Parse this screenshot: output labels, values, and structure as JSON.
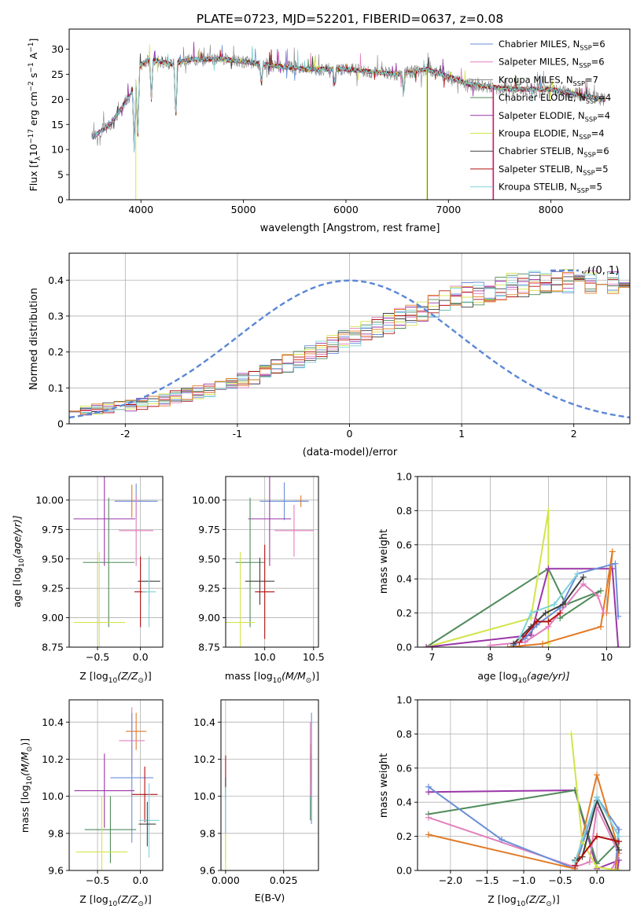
{
  "figure_title": "PLATE=0723, MJD=52201, FIBERID=0637, z=0.08",
  "legend_entries": [
    {
      "label": "Chabrier MILES, N",
      "sub": "SSP",
      "eq": "=6",
      "color": "#6a8fd8"
    },
    {
      "label": "Salpeter MILES, N",
      "sub": "SSP",
      "eq": "=6",
      "color": "#e27fbd"
    },
    {
      "label": "Kroupa MILES, N",
      "sub": "SSP",
      "eq": "=7",
      "color": "#808080"
    },
    {
      "label": "Chabrier ELODIE, N",
      "sub": "SSP",
      "eq": "=4",
      "color": "#4f8a5a"
    },
    {
      "label": "Salpeter ELODIE, N",
      "sub": "SSP",
      "eq": "=4",
      "color": "#9b36a8"
    },
    {
      "label": "Kroupa ELODIE, N",
      "sub": "SSP",
      "eq": "=4",
      "color": "#d2e44a"
    },
    {
      "label": "Chabrier STELIB, N",
      "sub": "SSP",
      "eq": "=6",
      "color": "#404040"
    },
    {
      "label": "Salpeter STELIB, N",
      "sub": "SSP",
      "eq": "=5",
      "color": "#b01010"
    },
    {
      "label": "Kroupa STELIB, N",
      "sub": "SSP",
      "eq": "=5",
      "color": "#7fd3d8"
    }
  ],
  "chart_data": [
    {
      "type": "line",
      "name": "spectrum",
      "xlabel": "wavelength [Angstrom, rest frame]",
      "ylabel_pre": "Flux [f",
      "ylabel_sub": "λ",
      "ylabel_mid": "10",
      "ylabel_sup": "−17",
      "ylabel_post": " erg cm",
      "ylabel_sup2": "−2",
      "ylabel_post2": " s",
      "ylabel_sup3": "−1",
      "ylabel_post3": " A",
      "ylabel_sup4": "−1",
      "ylabel_end": "]",
      "xlim": [
        3300,
        8770
      ],
      "ylim": [
        0,
        34
      ],
      "xticks": [
        4000,
        5000,
        6000,
        7000,
        8000
      ],
      "yticks": [
        0,
        5,
        10,
        15,
        20,
        25,
        30
      ],
      "continuum": [
        [
          3500,
          12
        ],
        [
          3700,
          15
        ],
        [
          3900,
          21
        ],
        [
          4000,
          27
        ],
        [
          4100,
          28
        ],
        [
          4300,
          27
        ],
        [
          4500,
          28
        ],
        [
          4800,
          28
        ],
        [
          5200,
          27
        ],
        [
          5600,
          26
        ],
        [
          6000,
          26
        ],
        [
          6500,
          25
        ],
        [
          6800,
          26
        ],
        [
          7200,
          23
        ],
        [
          7600,
          22
        ],
        [
          8000,
          22
        ],
        [
          8500,
          20
        ]
      ],
      "deep_lines": [
        [
          3934,
          10
        ],
        [
          3969,
          12
        ],
        [
          4102,
          20
        ],
        [
          4340,
          16
        ],
        [
          5175,
          23
        ],
        [
          5890,
          23
        ],
        [
          6563,
          21
        ]
      ],
      "dropouts": [
        {
          "x": 3950,
          "color": "#d2e44a"
        },
        {
          "x": 6790,
          "color": "#d2e44a"
        },
        {
          "x": 6795,
          "color": "#4f8a5a"
        },
        {
          "x": 7430,
          "color": "#e27fbd"
        },
        {
          "x": 7440,
          "color": "#b01010"
        }
      ]
    },
    {
      "type": "histogram",
      "name": "residuals",
      "xlabel": "(data-model)/error",
      "ylabel": "Normed distribution",
      "xlim": [
        -2.5,
        2.5
      ],
      "ylim": [
        0,
        0.475
      ],
      "xticks": [
        -2,
        -1,
        0,
        1,
        2
      ],
      "yticks": [
        0.0,
        0.1,
        0.2,
        0.3,
        0.4
      ],
      "bin_width": 0.1,
      "base": [
        0.035,
        0.038,
        0.04,
        0.045,
        0.048,
        0.052,
        0.056,
        0.062,
        0.067,
        0.074,
        0.08,
        0.087,
        0.095,
        0.104,
        0.113,
        0.122,
        0.133,
        0.144,
        0.156,
        0.168,
        0.18,
        0.193,
        0.205,
        0.218,
        0.231,
        0.244,
        0.257,
        0.27,
        0.282,
        0.294,
        0.306,
        0.318,
        0.329,
        0.339,
        0.349,
        0.358,
        0.366,
        0.373,
        0.379,
        0.384,
        0.389,
        0.392,
        0.395,
        0.397,
        0.398,
        0.398,
        0.397,
        0.395,
        0.392,
        0.389,
        0.384,
        0.379,
        0.373,
        0.366,
        0.358,
        0.349,
        0.339,
        0.329,
        0.318,
        0.306,
        0.294,
        0.282,
        0.27,
        0.257,
        0.244,
        0.231,
        0.218,
        0.205,
        0.193,
        0.18,
        0.168,
        0.156,
        0.144,
        0.133,
        0.122,
        0.113,
        0.104,
        0.095,
        0.087,
        0.08,
        0.074,
        0.067,
        0.062,
        0.056,
        0.052,
        0.048,
        0.045,
        0.04,
        0.038,
        0.035
      ],
      "gaussian_label": "𝒩(0, 1)",
      "gaussian_color": "#5b87d6"
    },
    {
      "type": "errorbar",
      "name": "age-vs-Z",
      "xlabel_pre": "Z [log",
      "xlabel_sub": "10",
      "xlabel_post": "(Z/Z",
      "xlabel_sub2": "⊙",
      "xlabel_end": ")]",
      "ylabel_pre": "age  [log",
      "ylabel_sub": "10",
      "ylabel_post": "(age/yr)]",
      "xlim": [
        -0.83,
        0.26
      ],
      "ylim": [
        8.75,
        10.2
      ],
      "xticks": [
        -0.5,
        0.0
      ],
      "xticklabels": [
        "−0.5",
        "0.0"
      ],
      "yticks": [
        8.75,
        9.0,
        9.25,
        9.5,
        9.75,
        10.0
      ],
      "yticklabels": [
        "8.75",
        "9.00",
        "9.25",
        "9.50",
        "9.75",
        "10.00"
      ],
      "points": [
        {
          "x": -0.1,
          "y": 9.99,
          "xerr": 0.2,
          "yerr": 0.14,
          "color": "#e27a25"
        },
        {
          "x": -0.05,
          "y": 9.99,
          "xerr": 0.25,
          "yerr": 0.15,
          "color": "#6a8fd8"
        },
        {
          "x": -0.42,
          "y": 9.84,
          "xerr": 0.36,
          "yerr": 0.4,
          "color": "#9b36a8"
        },
        {
          "x": -0.05,
          "y": 9.74,
          "xerr": 0.2,
          "yerr": 0.3,
          "color": "#e27fbd"
        },
        {
          "x": -0.37,
          "y": 9.47,
          "xerr": 0.3,
          "yerr": 0.55,
          "color": "#4f8a5a"
        },
        {
          "x": 0.1,
          "y": 9.31,
          "xerr": 0.13,
          "yerr": 0.2,
          "color": "#404040"
        },
        {
          "x": 0.0,
          "y": 9.22,
          "xerr": 0.07,
          "yerr": 0.3,
          "color": "#b01010"
        },
        {
          "x": 0.1,
          "y": 9.22,
          "xerr": 0.08,
          "yerr": 0.3,
          "color": "#7fd3d8"
        },
        {
          "x": -0.48,
          "y": 8.96,
          "xerr": 0.3,
          "yerr": 0.6,
          "color": "#d2e44a"
        }
      ]
    },
    {
      "type": "errorbar",
      "name": "age-vs-mass",
      "xlabel_pre": "mass [log",
      "xlabel_sub": "10",
      "xlabel_post": "(M/M",
      "xlabel_sub2": "⊙",
      "xlabel_end": ")]",
      "xlim": [
        9.6,
        10.55
      ],
      "ylim": [
        8.75,
        10.2
      ],
      "xticks": [
        10.0,
        10.5
      ],
      "xticklabels": [
        "10.0",
        "10.5"
      ],
      "yticks": [
        8.75,
        9.0,
        9.25,
        9.5,
        9.75,
        10.0
      ],
      "yticklabels": [
        "8.75",
        "9.00",
        "9.25",
        "9.50",
        "9.75",
        "10.00"
      ],
      "points": [
        {
          "x": 10.37,
          "y": 9.99,
          "xerr": 0.07,
          "yerr": 0.05,
          "color": "#e27a25"
        },
        {
          "x": 10.2,
          "y": 9.99,
          "xerr": 0.25,
          "yerr": 0.16,
          "color": "#6a8fd8"
        },
        {
          "x": 10.05,
          "y": 9.84,
          "xerr": 0.22,
          "yerr": 0.4,
          "color": "#9b36a8"
        },
        {
          "x": 10.3,
          "y": 9.74,
          "xerr": 0.2,
          "yerr": 0.22,
          "color": "#e27fbd"
        },
        {
          "x": 9.85,
          "y": 9.47,
          "xerr": 0.15,
          "yerr": 0.55,
          "color": "#4f8a5a"
        },
        {
          "x": 9.95,
          "y": 9.31,
          "xerr": 0.15,
          "yerr": 0.2,
          "color": "#404040"
        },
        {
          "x": 10.0,
          "y": 9.22,
          "xerr": 0.1,
          "yerr": 0.4,
          "color": "#b01010"
        },
        {
          "x": 9.75,
          "y": 8.96,
          "xerr": 0.15,
          "yerr": 0.6,
          "color": "#d2e44a"
        }
      ]
    },
    {
      "type": "line",
      "name": "mass-weight-vs-age",
      "xlabel_pre": "age  [log",
      "xlabel_sub": "10",
      "xlabel_post": "(age/yr)]",
      "ylabel": "mass weight",
      "xlim": [
        6.75,
        10.4
      ],
      "ylim": [
        0,
        1.0
      ],
      "xticks": [
        7,
        8,
        9,
        10
      ],
      "xticklabels": [
        "7",
        "8",
        "9",
        "10"
      ],
      "yticks": [
        0.0,
        0.2,
        0.4,
        0.6,
        0.8,
        1.0
      ],
      "yticklabels": [
        "0.0",
        "0.2",
        "0.4",
        "0.6",
        "0.8",
        "1.0"
      ],
      "series": [
        {
          "color": "#4f8a5a",
          "x": [
            6.9,
            9.0,
            9.3,
            9.9,
            9.2
          ],
          "y": [
            0.0,
            0.46,
            0.25,
            0.33,
            0.17
          ]
        },
        {
          "color": "#d2e44a",
          "x": [
            6.9,
            8.7,
            9.0,
            9.0
          ],
          "y": [
            0.0,
            0.17,
            0.8,
            0.02
          ]
        },
        {
          "color": "#9b36a8",
          "x": [
            6.9,
            8.7,
            9.0,
            10.1,
            10.2
          ],
          "y": [
            0.0,
            0.07,
            0.46,
            0.46,
            0.0
          ]
        },
        {
          "color": "#e27a25",
          "x": [
            8.3,
            8.9,
            9.9,
            10.1,
            10.0
          ],
          "y": [
            0.0,
            0.02,
            0.12,
            0.56,
            0.2
          ]
        },
        {
          "color": "#6a8fd8",
          "x": [
            8.4,
            8.6,
            8.8,
            9.2,
            9.5,
            10.15,
            10.2
          ],
          "y": [
            0.01,
            0.05,
            0.13,
            0.23,
            0.43,
            0.49,
            0.18
          ]
        },
        {
          "color": "#e27fbd",
          "x": [
            8.0,
            8.6,
            9.0,
            9.6,
            9.85,
            9.95
          ],
          "y": [
            0.01,
            0.03,
            0.12,
            0.37,
            0.3,
            0.2
          ]
        },
        {
          "color": "#404040",
          "x": [
            8.4,
            8.7,
            8.95,
            9.25,
            9.6
          ],
          "y": [
            0.02,
            0.12,
            0.2,
            0.25,
            0.41
          ]
        },
        {
          "color": "#b01010",
          "x": [
            8.5,
            8.8,
            9.0,
            9.2
          ],
          "y": [
            0.03,
            0.15,
            0.15,
            0.2
          ]
        },
        {
          "color": "#7fd3d8",
          "x": [
            8.5,
            8.7,
            9.1,
            9.5
          ],
          "y": [
            0.05,
            0.2,
            0.25,
            0.43
          ]
        }
      ]
    },
    {
      "type": "errorbar",
      "name": "mass-vs-Z",
      "xlabel_pre": "Z [log",
      "xlabel_sub": "10",
      "xlabel_post": "(Z/Z",
      "xlabel_sub2": "⊙",
      "xlabel_end": ")]",
      "ylabel_pre": "mass [log",
      "ylabel_sub": "10",
      "ylabel_post": "(M/M",
      "ylabel_sub2": "⊙",
      "ylabel_end": ")]",
      "xlim": [
        -0.83,
        0.26
      ],
      "ylim": [
        9.6,
        10.52
      ],
      "xticks": [
        -0.5,
        0.0
      ],
      "xticklabels": [
        "−0.5",
        "0.0"
      ],
      "yticks": [
        9.6,
        9.8,
        10.0,
        10.2,
        10.4
      ],
      "yticklabels": [
        "9.6",
        "9.8",
        "10.0",
        "10.2",
        "10.4"
      ],
      "points": [
        {
          "x": -0.05,
          "y": 10.35,
          "xerr": 0.12,
          "yerr": 0.1,
          "color": "#e27a25"
        },
        {
          "x": -0.1,
          "y": 10.3,
          "xerr": 0.15,
          "yerr": 0.18,
          "color": "#e27fbd"
        },
        {
          "x": -0.1,
          "y": 10.1,
          "xerr": 0.25,
          "yerr": 0.35,
          "color": "#6a8fd8"
        },
        {
          "x": -0.42,
          "y": 10.03,
          "xerr": 0.35,
          "yerr": 0.2,
          "color": "#9b36a8"
        },
        {
          "x": 0.05,
          "y": 10.01,
          "xerr": 0.15,
          "yerr": 0.15,
          "color": "#b01010"
        },
        {
          "x": 0.1,
          "y": 9.87,
          "xerr": 0.12,
          "yerr": 0.2,
          "color": "#7fd3d8"
        },
        {
          "x": -0.35,
          "y": 9.82,
          "xerr": 0.3,
          "yerr": 0.18,
          "color": "#4f8a5a"
        },
        {
          "x": 0.08,
          "y": 9.85,
          "xerr": 0.1,
          "yerr": 0.12,
          "color": "#404040"
        },
        {
          "x": -0.45,
          "y": 9.7,
          "xerr": 0.3,
          "yerr": 0.3,
          "color": "#d2e44a"
        }
      ]
    },
    {
      "type": "errorbar",
      "name": "mass-vs-EBV",
      "xlabel": "E(B-V)",
      "xlim": [
        -0.002,
        0.04
      ],
      "ylim": [
        9.6,
        10.52
      ],
      "xticks": [
        0.0,
        0.025
      ],
      "xticklabels": [
        "0.000",
        "0.025"
      ],
      "yticks": [
        9.6,
        9.8,
        10.0,
        10.2,
        10.4
      ],
      "yticklabels": [
        "9.6",
        "9.8",
        "10.0",
        "10.2",
        "10.4"
      ],
      "points": [
        {
          "x": 0.0,
          "y": 10.1,
          "xerr": 0,
          "yerr": 0.12,
          "color": "#b01010"
        },
        {
          "x": 0.0,
          "y": 9.95,
          "xerr": 0,
          "yerr": 0.15,
          "color": "#404040"
        },
        {
          "x": 0.0,
          "y": 9.85,
          "xerr": 0,
          "yerr": 0.2,
          "color": "#7fd3d8"
        },
        {
          "x": 0.0,
          "y": 9.7,
          "xerr": 0,
          "yerr": 0.1,
          "color": "#d2e44a"
        },
        {
          "x": 0.037,
          "y": 10.15,
          "xerr": 0,
          "yerr": 0.3,
          "color": "#6a8fd8"
        },
        {
          "x": 0.0365,
          "y": 10.05,
          "xerr": 0,
          "yerr": 0.18,
          "color": "#4f8a5a"
        },
        {
          "x": 0.0365,
          "y": 10.18,
          "xerr": 0,
          "yerr": 0.1,
          "color": "#e27a25"
        },
        {
          "x": 0.0365,
          "y": 10.2,
          "xerr": 0,
          "yerr": 0.2,
          "color": "#e27fbd"
        }
      ]
    },
    {
      "type": "line",
      "name": "mass-weight-vs-Z",
      "xlabel_pre": "Z [log",
      "xlabel_sub": "10",
      "xlabel_post": "(Z/Z",
      "xlabel_sub2": "⊙",
      "xlabel_end": ")]",
      "ylabel": "mass weight",
      "xlim": [
        -2.45,
        0.45
      ],
      "ylim": [
        0,
        1.0
      ],
      "xticks": [
        -2.0,
        -1.5,
        -1.0,
        -0.5,
        0.0
      ],
      "xticklabels": [
        "−2.0",
        "−1.5",
        "−1.0",
        "−0.5",
        "0.0"
      ],
      "yticks": [
        0.0,
        0.2,
        0.4,
        0.6,
        0.8,
        1.0
      ],
      "yticklabels": [
        "0.0",
        "0.2",
        "0.4",
        "0.6",
        "0.8",
        "1.0"
      ],
      "series": [
        {
          "color": "#9b36a8",
          "x": [
            -2.3,
            -0.3,
            0.0,
            0.3,
            0.28
          ],
          "y": [
            0.46,
            0.47,
            0.01,
            0.06,
            0.0
          ]
        },
        {
          "color": "#4f8a5a",
          "x": [
            -2.3,
            -0.3,
            0.0,
            0.3,
            0.25
          ],
          "y": [
            0.33,
            0.47,
            0.04,
            0.17,
            0.0
          ]
        },
        {
          "color": "#e27fbd",
          "x": [
            -2.3,
            -0.3,
            -0.1,
            0.0,
            0.3,
            0.2
          ],
          "y": [
            0.31,
            0.02,
            0.05,
            0.37,
            0.1,
            0.0
          ]
        },
        {
          "color": "#6a8fd8",
          "x": [
            -2.3,
            -1.3,
            -0.3,
            0.0,
            0.3,
            0.25
          ],
          "y": [
            0.49,
            0.18,
            0.01,
            0.43,
            0.24,
            0.0
          ]
        },
        {
          "color": "#e27a25",
          "x": [
            -2.3,
            -0.3,
            0.0,
            0.3,
            0.25
          ],
          "y": [
            0.21,
            0.01,
            0.56,
            0.12,
            0.0
          ]
        },
        {
          "color": "#d2e44a",
          "x": [
            -0.35,
            -0.2,
            0.0,
            0.3
          ],
          "y": [
            0.8,
            0.17,
            0.02,
            0.0
          ]
        },
        {
          "color": "#404040",
          "x": [
            -0.3,
            -0.2,
            0.0,
            0.3
          ],
          "y": [
            0.06,
            0.08,
            0.41,
            0.12
          ]
        },
        {
          "color": "#b01010",
          "x": [
            -0.3,
            0.0,
            0.3
          ],
          "y": [
            0.03,
            0.2,
            0.17
          ]
        },
        {
          "color": "#7fd3d8",
          "x": [
            -0.3,
            0.0,
            0.3
          ],
          "y": [
            0.05,
            0.43,
            0.2
          ]
        }
      ]
    }
  ]
}
